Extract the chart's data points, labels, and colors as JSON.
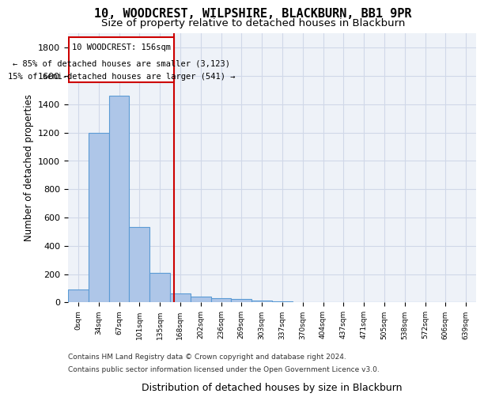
{
  "title1": "10, WOODCREST, WILPSHIRE, BLACKBURN, BB1 9PR",
  "title2": "Size of property relative to detached houses in Blackburn",
  "xlabel": "Distribution of detached houses by size in Blackburn",
  "ylabel": "Number of detached properties",
  "bar_values": [
    90,
    1200,
    1460,
    535,
    210,
    65,
    40,
    30,
    25,
    15,
    5,
    0,
    0,
    0,
    0,
    0,
    0,
    0,
    0,
    0
  ],
  "bin_labels": [
    "0sqm",
    "34sqm",
    "67sqm",
    "101sqm",
    "135sqm",
    "168sqm",
    "202sqm",
    "236sqm",
    "269sqm",
    "303sqm",
    "337sqm",
    "370sqm",
    "404sqm",
    "437sqm",
    "471sqm",
    "505sqm",
    "538sqm",
    "572sqm",
    "606sqm",
    "639sqm"
  ],
  "bar_color": "#AEC6E8",
  "bar_edge_color": "#5B9BD5",
  "grid_color": "#D0D8E8",
  "background_color": "#EEF2F8",
  "annotation_box_color": "#FFFFFF",
  "annotation_border_color": "#CC0000",
  "annotation_line1": "10 WOODCREST: 156sqm",
  "annotation_line2": "← 85% of detached houses are smaller (3,123)",
  "annotation_line3": "15% of semi-detached houses are larger (541) →",
  "property_line_x": 4.7,
  "property_line_color": "#CC0000",
  "ylim": [
    0,
    1900
  ],
  "yticks": [
    0,
    200,
    400,
    600,
    800,
    1000,
    1200,
    1400,
    1600,
    1800
  ],
  "footer_line1": "Contains HM Land Registry data © Crown copyright and database right 2024.",
  "footer_line2": "Contains public sector information licensed under the Open Government Licence v3.0."
}
